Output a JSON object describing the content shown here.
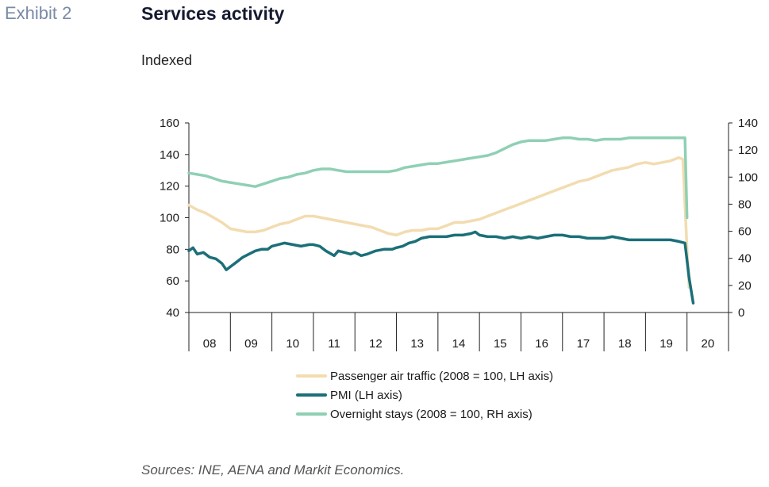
{
  "header": {
    "exhibit": "Exhibit 2",
    "title": "Services activity",
    "subtitle": "Indexed"
  },
  "footer": {
    "source": "Sources: INE, AENA and Markit Economics."
  },
  "colors": {
    "air": "#f2dcb0",
    "pmi": "#1b6f78",
    "stays": "#8fd0b4",
    "axis": "#222222"
  },
  "chart_data": {
    "type": "line",
    "x_categories": [
      "08",
      "09",
      "10",
      "11",
      "12",
      "13",
      "14",
      "15",
      "16",
      "17",
      "18",
      "19",
      "20"
    ],
    "y_left": {
      "range": [
        40,
        160
      ],
      "ticks": [
        40,
        60,
        80,
        100,
        120,
        140,
        160
      ]
    },
    "y_right": {
      "range": [
        0,
        140
      ],
      "ticks": [
        0,
        20,
        40,
        60,
        80,
        100,
        120,
        140
      ]
    },
    "grid": false,
    "legend_position": "bottom",
    "series": [
      {
        "name": "Passenger air traffic (2008 = 100, LH axis)",
        "axis": "left",
        "color_key": "air",
        "points": [
          [
            0.0,
            108
          ],
          [
            0.2,
            105
          ],
          [
            0.4,
            103
          ],
          [
            0.6,
            100
          ],
          [
            0.8,
            97
          ],
          [
            1.0,
            93
          ],
          [
            1.2,
            92
          ],
          [
            1.4,
            91
          ],
          [
            1.6,
            91
          ],
          [
            1.8,
            92
          ],
          [
            2.0,
            94
          ],
          [
            2.2,
            96
          ],
          [
            2.4,
            97
          ],
          [
            2.6,
            99
          ],
          [
            2.8,
            101
          ],
          [
            3.0,
            101
          ],
          [
            3.2,
            100
          ],
          [
            3.4,
            99
          ],
          [
            3.6,
            98
          ],
          [
            3.8,
            97
          ],
          [
            4.0,
            96
          ],
          [
            4.2,
            95
          ],
          [
            4.4,
            94
          ],
          [
            4.6,
            92
          ],
          [
            4.8,
            90
          ],
          [
            5.0,
            89
          ],
          [
            5.2,
            91
          ],
          [
            5.4,
            92
          ],
          [
            5.6,
            92
          ],
          [
            5.8,
            93
          ],
          [
            6.0,
            93
          ],
          [
            6.2,
            95
          ],
          [
            6.4,
            97
          ],
          [
            6.6,
            97
          ],
          [
            6.8,
            98
          ],
          [
            7.0,
            99
          ],
          [
            7.2,
            101
          ],
          [
            7.4,
            103
          ],
          [
            7.6,
            105
          ],
          [
            7.8,
            107
          ],
          [
            8.0,
            109
          ],
          [
            8.2,
            111
          ],
          [
            8.4,
            113
          ],
          [
            8.6,
            115
          ],
          [
            8.8,
            117
          ],
          [
            9.0,
            119
          ],
          [
            9.2,
            121
          ],
          [
            9.4,
            123
          ],
          [
            9.6,
            124
          ],
          [
            9.8,
            126
          ],
          [
            10.0,
            128
          ],
          [
            10.2,
            130
          ],
          [
            10.4,
            131
          ],
          [
            10.6,
            132
          ],
          [
            10.8,
            134
          ],
          [
            11.0,
            135
          ],
          [
            11.2,
            134
          ],
          [
            11.4,
            135
          ],
          [
            11.6,
            136
          ],
          [
            11.8,
            138
          ],
          [
            11.9,
            137
          ],
          [
            12.0,
            80
          ],
          [
            12.05,
            56
          ]
        ]
      },
      {
        "name": "PMI (LH axis)",
        "axis": "left",
        "color_key": "pmi",
        "points": [
          [
            0.0,
            79
          ],
          [
            0.1,
            81
          ],
          [
            0.2,
            77
          ],
          [
            0.35,
            78
          ],
          [
            0.5,
            75
          ],
          [
            0.65,
            74
          ],
          [
            0.8,
            71
          ],
          [
            0.9,
            67
          ],
          [
            1.0,
            69
          ],
          [
            1.15,
            72
          ],
          [
            1.3,
            75
          ],
          [
            1.45,
            77
          ],
          [
            1.6,
            79
          ],
          [
            1.75,
            80
          ],
          [
            1.9,
            80
          ],
          [
            2.0,
            82
          ],
          [
            2.15,
            83
          ],
          [
            2.3,
            84
          ],
          [
            2.5,
            83
          ],
          [
            2.7,
            82
          ],
          [
            2.9,
            83
          ],
          [
            3.0,
            83
          ],
          [
            3.15,
            82
          ],
          [
            3.3,
            79
          ],
          [
            3.5,
            76
          ],
          [
            3.6,
            79
          ],
          [
            3.75,
            78
          ],
          [
            3.9,
            77
          ],
          [
            4.0,
            78
          ],
          [
            4.15,
            76
          ],
          [
            4.3,
            77
          ],
          [
            4.5,
            79
          ],
          [
            4.7,
            80
          ],
          [
            4.9,
            80
          ],
          [
            5.0,
            81
          ],
          [
            5.15,
            82
          ],
          [
            5.3,
            84
          ],
          [
            5.45,
            85
          ],
          [
            5.6,
            87
          ],
          [
            5.8,
            88
          ],
          [
            6.0,
            88
          ],
          [
            6.2,
            88
          ],
          [
            6.4,
            89
          ],
          [
            6.6,
            89
          ],
          [
            6.8,
            90
          ],
          [
            6.9,
            91
          ],
          [
            7.0,
            89
          ],
          [
            7.2,
            88
          ],
          [
            7.4,
            88
          ],
          [
            7.6,
            87
          ],
          [
            7.8,
            88
          ],
          [
            8.0,
            87
          ],
          [
            8.2,
            88
          ],
          [
            8.4,
            87
          ],
          [
            8.6,
            88
          ],
          [
            8.8,
            89
          ],
          [
            9.0,
            89
          ],
          [
            9.2,
            88
          ],
          [
            9.4,
            88
          ],
          [
            9.6,
            87
          ],
          [
            9.8,
            87
          ],
          [
            10.0,
            87
          ],
          [
            10.2,
            88
          ],
          [
            10.4,
            87
          ],
          [
            10.6,
            86
          ],
          [
            10.8,
            86
          ],
          [
            11.0,
            86
          ],
          [
            11.2,
            86
          ],
          [
            11.4,
            86
          ],
          [
            11.6,
            86
          ],
          [
            11.8,
            85
          ],
          [
            11.95,
            84
          ],
          [
            12.05,
            62
          ],
          [
            12.15,
            46
          ]
        ]
      },
      {
        "name": "Overnight stays (2008 = 100, RH axis)",
        "axis": "right",
        "color_key": "stays",
        "points": [
          [
            0.0,
            103
          ],
          [
            0.2,
            102
          ],
          [
            0.4,
            101
          ],
          [
            0.6,
            99
          ],
          [
            0.8,
            97
          ],
          [
            1.0,
            96
          ],
          [
            1.2,
            95
          ],
          [
            1.4,
            94
          ],
          [
            1.6,
            93
          ],
          [
            1.8,
            95
          ],
          [
            2.0,
            97
          ],
          [
            2.2,
            99
          ],
          [
            2.4,
            100
          ],
          [
            2.6,
            102
          ],
          [
            2.8,
            103
          ],
          [
            3.0,
            105
          ],
          [
            3.2,
            106
          ],
          [
            3.4,
            106
          ],
          [
            3.6,
            105
          ],
          [
            3.8,
            104
          ],
          [
            4.0,
            104
          ],
          [
            4.2,
            104
          ],
          [
            4.4,
            104
          ],
          [
            4.6,
            104
          ],
          [
            4.8,
            104
          ],
          [
            5.0,
            105
          ],
          [
            5.2,
            107
          ],
          [
            5.4,
            108
          ],
          [
            5.6,
            109
          ],
          [
            5.8,
            110
          ],
          [
            6.0,
            110
          ],
          [
            6.2,
            111
          ],
          [
            6.4,
            112
          ],
          [
            6.6,
            113
          ],
          [
            6.8,
            114
          ],
          [
            7.0,
            115
          ],
          [
            7.2,
            116
          ],
          [
            7.4,
            118
          ],
          [
            7.6,
            121
          ],
          [
            7.8,
            124
          ],
          [
            8.0,
            126
          ],
          [
            8.2,
            127
          ],
          [
            8.4,
            127
          ],
          [
            8.6,
            127
          ],
          [
            8.8,
            128
          ],
          [
            9.0,
            129
          ],
          [
            9.2,
            129
          ],
          [
            9.4,
            128
          ],
          [
            9.6,
            128
          ],
          [
            9.8,
            127
          ],
          [
            10.0,
            128
          ],
          [
            10.2,
            128
          ],
          [
            10.4,
            128
          ],
          [
            10.6,
            129
          ],
          [
            10.8,
            129
          ],
          [
            11.0,
            129
          ],
          [
            11.2,
            129
          ],
          [
            11.4,
            129
          ],
          [
            11.6,
            129
          ],
          [
            11.8,
            129
          ],
          [
            11.95,
            129
          ],
          [
            12.0,
            70
          ]
        ]
      }
    ]
  }
}
